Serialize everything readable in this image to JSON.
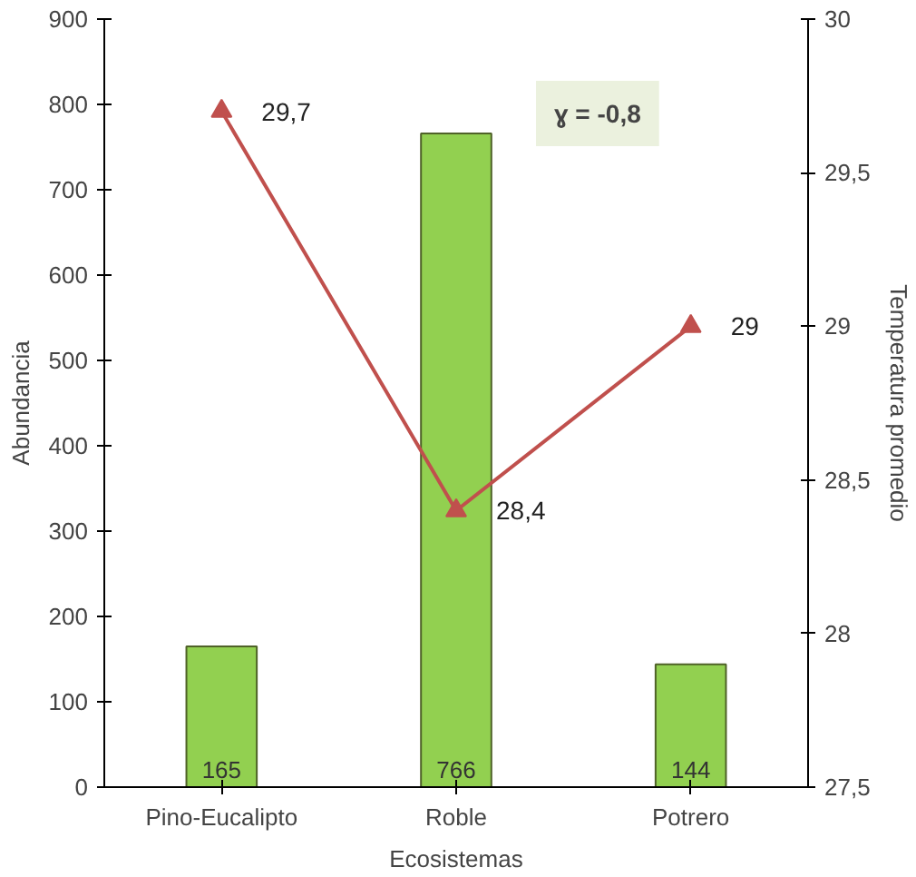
{
  "chart_data": {
    "type": "bar",
    "categories": [
      "Pino-Eucalipto",
      "Roble",
      "Potrero"
    ],
    "xlabel": "Ecosistemas",
    "ylabel": "Abundancia",
    "y2label": "Temperatura promedio",
    "series": [
      {
        "color": "#92d050",
        "values": [
          165,
          766,
          144
        ],
        "value_labels": [
          "165",
          "766",
          "144"
        ]
      },
      {
        "type": "line",
        "axis": "y2",
        "color": "#c0504d",
        "marker": "triangle",
        "values": [
          29.7,
          28.4,
          29
        ],
        "value_labels": [
          "29,7",
          "28,4",
          "29"
        ]
      }
    ],
    "ylim": [
      0,
      900
    ],
    "yticks": [
      0,
      100,
      200,
      300,
      400,
      500,
      600,
      700,
      800,
      900
    ],
    "y2lim": [
      27.5,
      30
    ],
    "y2ticks": [
      {
        "value": 27.5,
        "label": "27,5"
      },
      28,
      {
        "value": 28.5,
        "label": "28,5"
      },
      29,
      {
        "value": 29.5,
        "label": "29,5"
      },
      30
    ],
    "annotations": [
      "ɣ = -0,8"
    ],
    "grid": false
  }
}
